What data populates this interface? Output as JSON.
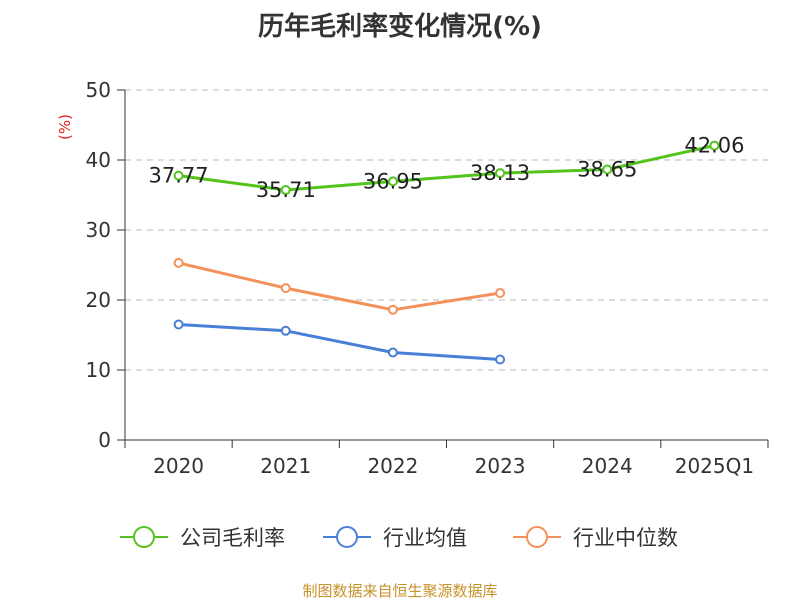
{
  "chart_data": {
    "type": "line",
    "title": "历年毛利率变化情况(%)",
    "ylabel": "(%)",
    "xlabel": "",
    "categories": [
      "2020",
      "2021",
      "2022",
      "2023",
      "2024",
      "2025Q1"
    ],
    "ylim": [
      0,
      50
    ],
    "yticks": [
      0,
      10,
      20,
      30,
      40,
      50
    ],
    "grid": true,
    "legend_position": "bottom",
    "series": [
      {
        "name": "公司毛利率",
        "color": "#52c41a",
        "values": [
          37.77,
          35.71,
          36.95,
          38.13,
          38.65,
          42.06
        ],
        "labels": [
          "37.77",
          "35.71",
          "36.95",
          "38.13",
          "38.65",
          "42.06"
        ]
      },
      {
        "name": "行业均值",
        "color": "#4a7fd8",
        "values": [
          16.5,
          15.6,
          12.5,
          11.5,
          null,
          null
        ]
      },
      {
        "name": "行业中位数",
        "color": "#f4915a",
        "values": [
          25.3,
          21.7,
          18.6,
          21.0,
          null,
          null
        ]
      }
    ]
  },
  "source": {
    "text": "制图数据来自恒生聚源数据库",
    "color": "#c8922a"
  },
  "colors": {
    "axis": "#333333",
    "grid": "#b8b8b8",
    "ylabel": "#e02020"
  }
}
